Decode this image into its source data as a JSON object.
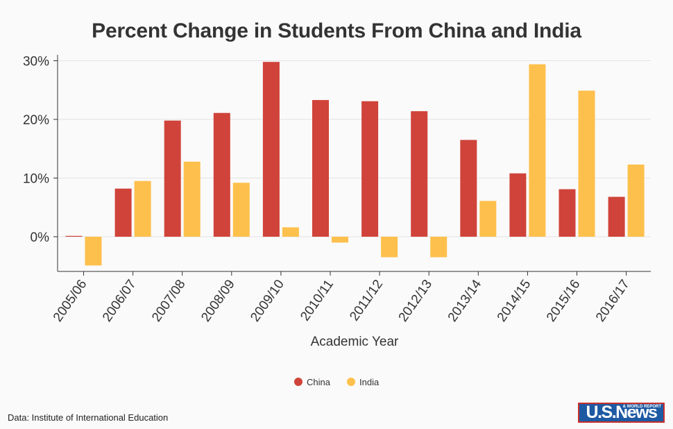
{
  "title": "Percent Change in Students From China and India",
  "source": "Data: Institute of International Education",
  "logo": {
    "text": "U.S.News",
    "subtext": "& WORLD REPORT"
  },
  "colors": {
    "china": "#d0433a",
    "india": "#fec04c",
    "axis": "#333333",
    "grid": "#e3e3e3",
    "background": "#fafafa"
  },
  "chart_data": {
    "type": "bar",
    "title": "Percent Change in Students From China and India",
    "xlabel": "Academic Year",
    "ylabel": "",
    "ylim": [
      -6,
      31
    ],
    "yticks": [
      0,
      10,
      20,
      30
    ],
    "ytick_labels": [
      "0%",
      "10%",
      "20%",
      "30%"
    ],
    "grid": true,
    "legend_position": "bottom",
    "categories": [
      "2005/06",
      "2006/07",
      "2007/08",
      "2008/09",
      "2009/10",
      "2010/11",
      "2011/12",
      "2012/13",
      "2013/14",
      "2014/15",
      "2015/16",
      "2016/17"
    ],
    "series": [
      {
        "name": "China",
        "color": "#d0433a",
        "values": [
          0.1,
          8.2,
          19.8,
          21.1,
          29.8,
          23.3,
          23.1,
          21.4,
          16.5,
          10.8,
          8.1,
          6.8
        ]
      },
      {
        "name": "India",
        "color": "#fec04c",
        "values": [
          -4.9,
          9.5,
          12.8,
          9.2,
          1.6,
          -1.0,
          -3.5,
          -3.5,
          6.1,
          29.4,
          24.9,
          12.3
        ]
      }
    ]
  }
}
